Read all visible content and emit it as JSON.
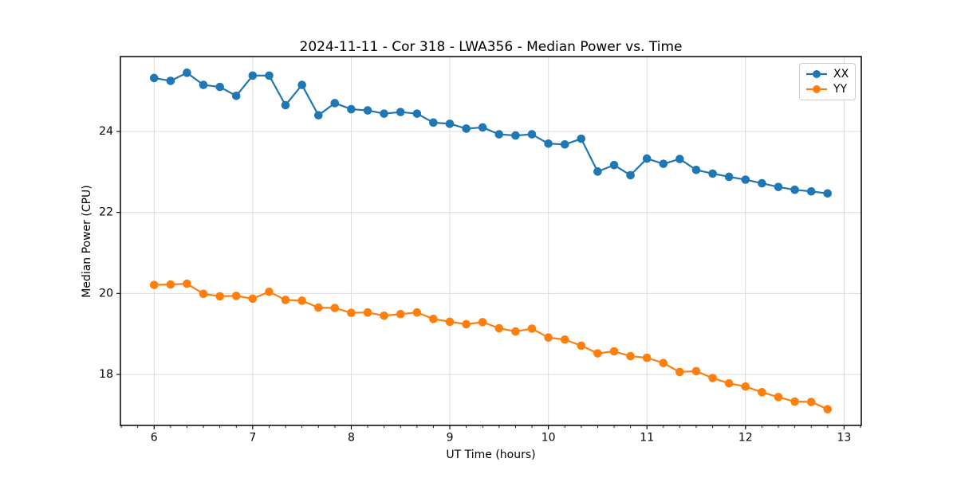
{
  "chart_data": {
    "type": "line",
    "title": "2024-11-11 - Cor 318 - LWA356 - Median Power vs. Time",
    "xlabel": "UT Time (hours)",
    "ylabel": "Median Power (CPU)",
    "xlim": [
      5.658,
      13.175
    ],
    "ylim": [
      16.74,
      25.85
    ],
    "x_ticks": [
      6,
      7,
      8,
      9,
      10,
      11,
      12,
      13
    ],
    "y_ticks": [
      18,
      20,
      22,
      24
    ],
    "x_minor_interval": 0.16667,
    "grid": true,
    "grid_color": "#dcdcdc",
    "spine_color": "#000000",
    "legend_position": "upper right",
    "marker": "circle",
    "x": [
      6.0,
      6.167,
      6.333,
      6.5,
      6.667,
      6.833,
      7.0,
      7.167,
      7.333,
      7.5,
      7.667,
      7.833,
      8.0,
      8.167,
      8.333,
      8.5,
      8.667,
      8.833,
      9.0,
      9.167,
      9.333,
      9.5,
      9.667,
      9.833,
      10.0,
      10.167,
      10.333,
      10.5,
      10.667,
      10.833,
      11.0,
      11.167,
      11.333,
      11.5,
      11.667,
      11.833,
      12.0,
      12.167,
      12.333,
      12.5,
      12.667,
      12.833
    ],
    "series": [
      {
        "name": "XX",
        "color": "#1f77b4",
        "values": [
          25.32,
          25.25,
          25.45,
          25.15,
          25.1,
          24.88,
          25.38,
          25.38,
          24.65,
          25.15,
          24.4,
          24.7,
          24.55,
          24.52,
          24.44,
          24.48,
          24.44,
          24.22,
          24.19,
          24.07,
          24.1,
          23.93,
          23.9,
          23.93,
          23.7,
          23.68,
          23.82,
          23.01,
          23.17,
          22.92,
          23.33,
          23.2,
          23.32,
          23.05,
          22.96,
          22.88,
          22.81,
          22.72,
          22.63,
          22.56,
          22.52,
          22.47
        ]
      },
      {
        "name": "YY",
        "color": "#ff7f0e",
        "values": [
          20.21,
          20.22,
          20.24,
          19.99,
          19.93,
          19.94,
          19.87,
          20.04,
          19.84,
          19.82,
          19.65,
          19.64,
          19.52,
          19.53,
          19.45,
          19.49,
          19.53,
          19.37,
          19.3,
          19.24,
          19.29,
          19.14,
          19.06,
          19.13,
          18.91,
          18.86,
          18.71,
          18.52,
          18.57,
          18.45,
          18.41,
          18.28,
          18.06,
          18.08,
          17.91,
          17.78,
          17.7,
          17.56,
          17.44,
          17.33,
          17.32,
          17.14
        ]
      }
    ]
  }
}
